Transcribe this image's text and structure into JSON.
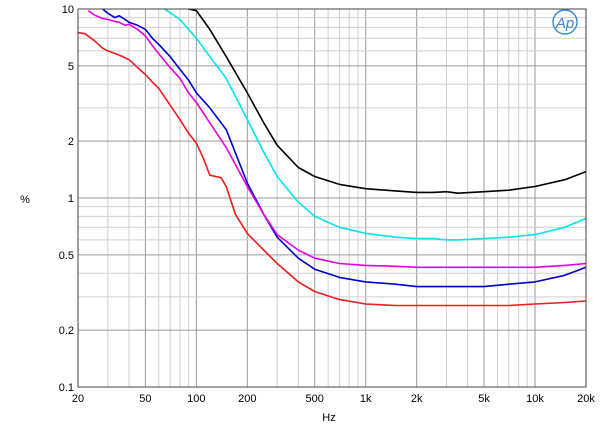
{
  "chart_data": {
    "type": "line",
    "title": "",
    "xlabel": "Hz",
    "ylabel": "%",
    "xscale": "log",
    "yscale": "log",
    "xlim": [
      20,
      20000
    ],
    "ylim": [
      0.1,
      10
    ],
    "grid": true,
    "legend": "none",
    "x_ticks": [
      {
        "value": 20,
        "label": "20"
      },
      {
        "value": 50,
        "label": "50"
      },
      {
        "value": 100,
        "label": "100"
      },
      {
        "value": 200,
        "label": "200"
      },
      {
        "value": 500,
        "label": "500"
      },
      {
        "value": 1000,
        "label": "1k"
      },
      {
        "value": 2000,
        "label": "2k"
      },
      {
        "value": 5000,
        "label": "5k"
      },
      {
        "value": 10000,
        "label": "10k"
      },
      {
        "value": 20000,
        "label": "20k"
      }
    ],
    "y_ticks": [
      {
        "value": 0.1,
        "label": "0.1"
      },
      {
        "value": 0.2,
        "label": "0.2"
      },
      {
        "value": 0.5,
        "label": "0.5"
      },
      {
        "value": 1,
        "label": "1"
      },
      {
        "value": 2,
        "label": "2"
      },
      {
        "value": 5,
        "label": "5"
      },
      {
        "value": 10,
        "label": "10"
      }
    ],
    "series": [
      {
        "color": "#000000",
        "x": [
          90,
          100,
          120,
          150,
          200,
          250,
          300,
          400,
          500,
          700,
          1000,
          1500,
          2000,
          2500,
          3000,
          3500,
          5000,
          7000,
          10000,
          15000,
          20000
        ],
        "y": [
          11,
          9.8,
          7.8,
          5.6,
          3.6,
          2.5,
          1.9,
          1.45,
          1.3,
          1.18,
          1.12,
          1.09,
          1.07,
          1.07,
          1.08,
          1.06,
          1.08,
          1.1,
          1.15,
          1.25,
          1.38
        ]
      },
      {
        "color": "#00e5ee",
        "x": [
          65,
          80,
          100,
          120,
          150,
          200,
          250,
          300,
          400,
          500,
          700,
          1000,
          1500,
          2000,
          2500,
          3000,
          3500,
          5000,
          7000,
          10000,
          15000,
          20000
        ],
        "y": [
          10.5,
          8.8,
          7,
          5.6,
          4.3,
          2.6,
          1.75,
          1.3,
          0.95,
          0.8,
          0.7,
          0.65,
          0.62,
          0.61,
          0.61,
          0.6,
          0.6,
          0.61,
          0.62,
          0.64,
          0.7,
          0.78
        ]
      },
      {
        "color": "#0000cc",
        "x": [
          28,
          30,
          33,
          35,
          38,
          40,
          45,
          50,
          55,
          60,
          70,
          80,
          90,
          100,
          120,
          150,
          200,
          250,
          300,
          400,
          500,
          700,
          1000,
          1500,
          2000,
          3000,
          5000,
          7000,
          10000,
          15000,
          20000
        ],
        "y": [
          10.2,
          9.5,
          9,
          9.2,
          8.8,
          8.5,
          8.2,
          7.8,
          7,
          6.5,
          5.6,
          4.8,
          4.2,
          3.6,
          3.0,
          2.3,
          1.2,
          0.82,
          0.62,
          0.48,
          0.42,
          0.38,
          0.36,
          0.35,
          0.34,
          0.34,
          0.34,
          0.35,
          0.36,
          0.39,
          0.43
        ]
      },
      {
        "color": "#e600e6",
        "x": [
          23,
          25,
          28,
          30,
          33,
          35,
          38,
          40,
          45,
          50,
          55,
          60,
          70,
          80,
          90,
          100,
          120,
          150,
          200,
          250,
          300,
          400,
          500,
          700,
          1000,
          1500,
          2000,
          3000,
          5000,
          7000,
          10000,
          15000,
          20000
        ],
        "y": [
          9.8,
          9.3,
          8.9,
          8.8,
          8.6,
          8.5,
          8.2,
          8.3,
          7.8,
          7.2,
          6.4,
          5.8,
          4.9,
          4.3,
          3.6,
          3.2,
          2.5,
          1.85,
          1.15,
          0.82,
          0.64,
          0.53,
          0.48,
          0.45,
          0.44,
          0.435,
          0.43,
          0.43,
          0.43,
          0.43,
          0.43,
          0.44,
          0.45
        ]
      },
      {
        "color": "#ee1c1c",
        "x": [
          20,
          22,
          25,
          28,
          30,
          35,
          40,
          45,
          50,
          55,
          60,
          70,
          80,
          90,
          100,
          110,
          120,
          130,
          140,
          150,
          170,
          200,
          250,
          300,
          400,
          500,
          700,
          1000,
          1500,
          2000,
          3000,
          5000,
          7000,
          10000,
          15000,
          20000
        ],
        "y": [
          7.5,
          7.4,
          6.8,
          6.2,
          6.0,
          5.7,
          5.4,
          4.9,
          4.5,
          4.1,
          3.8,
          3.1,
          2.6,
          2.2,
          1.95,
          1.62,
          1.32,
          1.3,
          1.28,
          1.15,
          0.82,
          0.65,
          0.53,
          0.45,
          0.36,
          0.32,
          0.29,
          0.275,
          0.27,
          0.27,
          0.27,
          0.27,
          0.27,
          0.275,
          0.28,
          0.285
        ]
      }
    ]
  },
  "logo": {
    "text": "AP"
  }
}
